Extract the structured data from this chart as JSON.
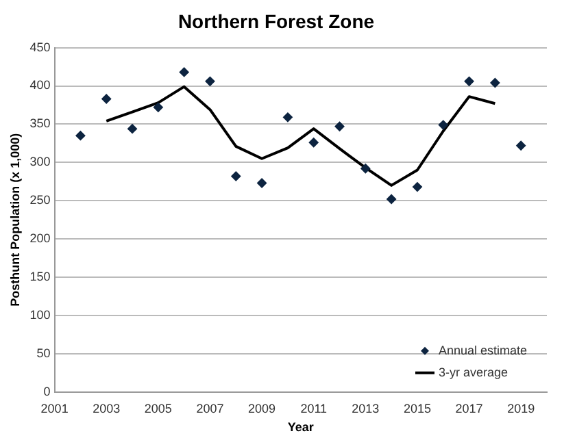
{
  "chart_data": {
    "type": "scatter",
    "title": "Northern Forest Zone",
    "xlabel": "Year",
    "ylabel": "Posthunt Population (x 1,000)",
    "xlim": [
      2001,
      2020
    ],
    "xticks": [
      2001,
      2003,
      2005,
      2007,
      2009,
      2011,
      2013,
      2015,
      2017,
      2019
    ],
    "ylim": [
      0,
      450
    ],
    "yticks": [
      0,
      50,
      100,
      150,
      200,
      250,
      300,
      350,
      400,
      450
    ],
    "grid": "y",
    "legend": "bottom right",
    "series": [
      {
        "name": "Annual estimate",
        "color": "#0d2440",
        "marker": "diamond",
        "x": [
          2002,
          2003,
          2004,
          2005,
          2006,
          2007,
          2008,
          2009,
          2010,
          2011,
          2012,
          2013,
          2014,
          2015,
          2016,
          2017,
          2018,
          2019
        ],
        "values": [
          335,
          383,
          344,
          372,
          418,
          406,
          282,
          273,
          359,
          326,
          347,
          292,
          252,
          268,
          349,
          406,
          404,
          322
        ]
      },
      {
        "name": "3-yr average",
        "type": "line",
        "color": "#000000",
        "marker": "none",
        "x": [
          2003,
          2004,
          2005,
          2006,
          2007,
          2008,
          2009,
          2010,
          2011,
          2012,
          2013,
          2014,
          2015,
          2016,
          2017,
          2018
        ],
        "values": [
          354,
          366,
          378,
          399,
          369,
          321,
          305,
          319,
          344,
          318,
          293,
          270,
          290,
          341,
          386,
          377
        ]
      }
    ]
  }
}
